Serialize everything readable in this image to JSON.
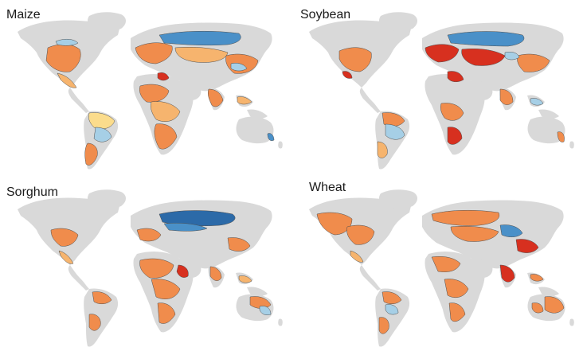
{
  "panels": [
    {
      "title": "Maize",
      "id": "maize"
    },
    {
      "title": "Soybean",
      "id": "soybean"
    },
    {
      "title": "Sorghum",
      "id": "sorghum"
    },
    {
      "title": "Wheat",
      "id": "wheat"
    }
  ],
  "colors": {
    "land": "#d9d9d9",
    "border": "#4d4d4d",
    "orange": "#f08c4c",
    "light_orange": "#f6b46e",
    "yellow": "#fbdc8c",
    "red": "#d7301f",
    "light_blue": "#a6cfe6",
    "blue": "#4a90c8",
    "dark_blue": "#2c6aa8"
  }
}
